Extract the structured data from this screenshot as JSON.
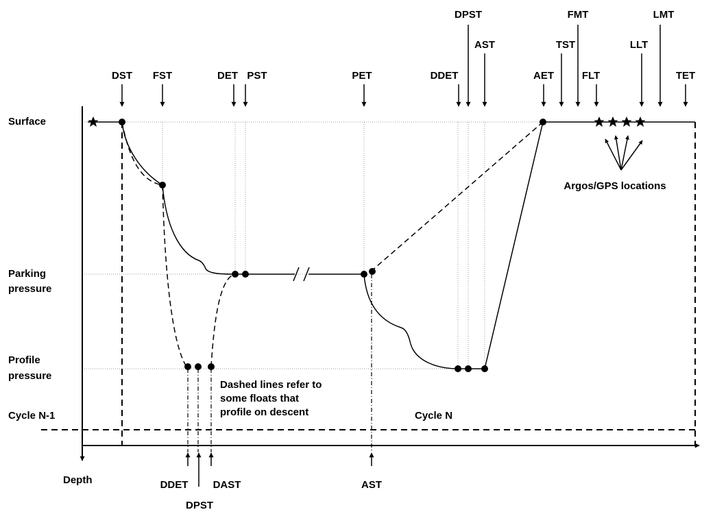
{
  "y_labels": {
    "surface": "Surface",
    "parking_1": "Parking",
    "parking_2": "pressure",
    "profile_1": "Profile",
    "profile_2": "pressure",
    "depth": "Depth"
  },
  "cycles": {
    "prev": "Cycle N-1",
    "current": "Cycle N"
  },
  "top_events": {
    "dst": "DST",
    "fst": "FST",
    "det": "DET",
    "pst": "PST",
    "pet": "PET",
    "ddet": "DDET",
    "dpst": "DPST",
    "ast": "AST",
    "aet": "AET",
    "tst": "TST",
    "fmt": "FMT",
    "flt": "FLT",
    "llt": "LLT",
    "lmt": "LMT",
    "tet": "TET"
  },
  "bottom_events": {
    "ddet": "DDET",
    "dpst": "DPST",
    "dast": "DAST",
    "ast": "AST"
  },
  "annotations": {
    "argos": "Argos/GPS locations",
    "dashed_1": "Dashed lines refer to",
    "dashed_2": "some floats that",
    "dashed_3": "profile on descent"
  }
}
